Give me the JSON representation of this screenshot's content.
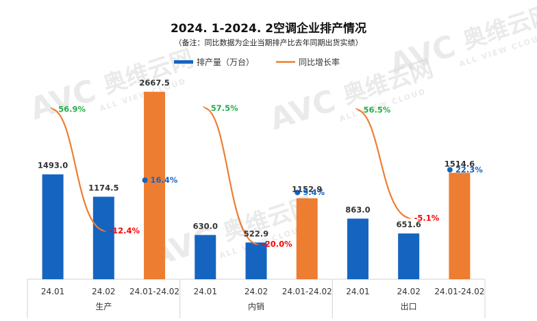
{
  "watermark": {
    "logo": "AVC",
    "cn": "奥维云网",
    "en": "ALL VIEW CLOUD"
  },
  "chart_data": {
    "type": "bar",
    "title": "2024. 1-2024. 2空调企业排产情况",
    "subtitle": "（备注：同比数据为企业当期排产比去年同期出货实绩）",
    "categories": [
      "24.01",
      "24.02",
      "24.01-24.02",
      "24.01",
      "24.02",
      "24.01-24.02",
      "24.01",
      "24.02",
      "24.01-24.02"
    ],
    "groups": [
      {
        "name": "生产",
        "span": [
          0,
          2
        ]
      },
      {
        "name": "内销",
        "span": [
          3,
          5
        ]
      },
      {
        "name": "出口",
        "span": [
          6,
          8
        ]
      }
    ],
    "series": [
      {
        "name": "排产量（万台）",
        "kind": "bar",
        "values": [
          1493.0,
          1174.5,
          2667.5,
          630.0,
          522.9,
          1152.9,
          863.0,
          651.6,
          1514.6
        ],
        "labels": [
          "1493.0",
          "1174.5",
          "2667.5",
          "630.0",
          "522.9",
          "1152.9",
          "863.0",
          "651.6",
          "1514.6"
        ]
      },
      {
        "name": "同比增长率",
        "kind": "line",
        "values": [
          56.9,
          -12.4,
          16.4,
          57.5,
          -20.0,
          9.4,
          56.5,
          -5.1,
          22.3
        ],
        "labels": [
          "56.9%",
          "-12.4%",
          "16.4%",
          "57.5%",
          "-20.0%",
          "9.4%",
          "56.5%",
          "-5.1%",
          "22.3%"
        ]
      }
    ],
    "bar_ylim": [
      0,
      3000
    ],
    "pct_ylim": [
      -40,
      80
    ],
    "colors": {
      "bar_monthly": "#1565c0",
      "bar_total": "#ed7d31",
      "line": "#ed7d31",
      "total_dot": "#1565c0",
      "pct_positive": "#22b04b",
      "pct_negative": "#ff0000",
      "pct_total": "#1565c0"
    },
    "legend": {
      "position": "top"
    },
    "grid": false
  }
}
